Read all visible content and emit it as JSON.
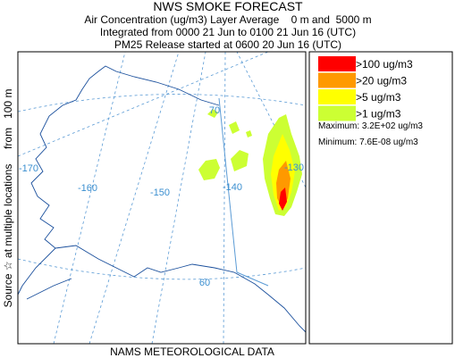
{
  "header": {
    "title": "NWS SMOKE FORECAST",
    "lines": [
      "Air Concentration (ug/m3) Layer Average    0 m and  5000 m",
      "Integrated from 0000 21 Jun to 0100 21 Jun 16 (UTC)",
      "PM25 Release started at 0600 20 Jun 16 (UTC)"
    ]
  },
  "side_label": "Source ☆ at multiple locations     from   100 m",
  "footer": "NAMS METEOROLOGICAL DATA",
  "legend": {
    "items": [
      {
        "label": ">100 ug/m3",
        "color": "#ff0000"
      },
      {
        "label": ">20 ug/m3",
        "color": "#ff9900"
      },
      {
        "label": ">5 ug/m3",
        "color": "#ffff00"
      },
      {
        "label": ">1 ug/m3",
        "color": "#ccff33"
      }
    ],
    "maximum": "Maximum: 3.2E+02 ug/m3",
    "minimum": "Minimum: 7.6E-08 ug/m3"
  },
  "map": {
    "labels": [
      "70",
      "-170",
      "-160",
      "-150",
      "-140",
      "-130",
      "60"
    ]
  }
}
